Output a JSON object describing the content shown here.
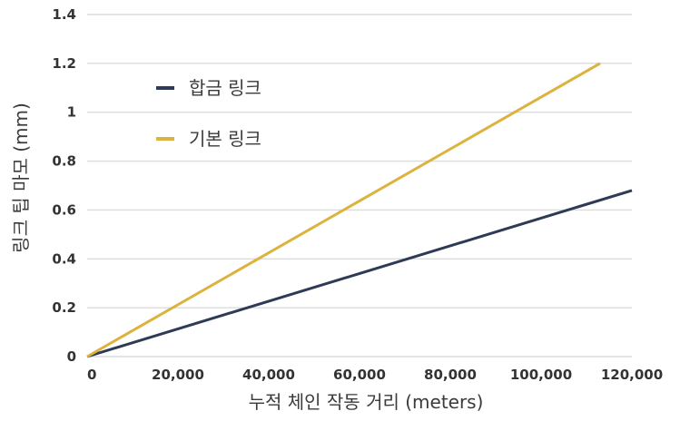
{
  "chart_data": {
    "type": "line",
    "xlabel": "누적 체인 작동 거리 (meters)",
    "ylabel": "링크 팁 마모 (mm)",
    "xlim": [
      0,
      120000
    ],
    "ylim": [
      0,
      1.4
    ],
    "x_ticks": [
      "0",
      "20,000",
      "40,000",
      "60,000",
      "80,000",
      "100,000",
      "120,000"
    ],
    "y_ticks": [
      "0",
      "0.2",
      "0.4",
      "0.6",
      "0.8",
      "1",
      "1.2",
      "1.4"
    ],
    "grid": "horizontal",
    "legend_position": "upper-left",
    "series": [
      {
        "name": "합금 링크",
        "color": "#2e3a56",
        "x": [
          0,
          120000
        ],
        "y": [
          0,
          0.68
        ]
      },
      {
        "name": "기본 링크",
        "color": "#dcb33f",
        "x": [
          0,
          113000
        ],
        "y": [
          0,
          1.2
        ]
      }
    ]
  }
}
